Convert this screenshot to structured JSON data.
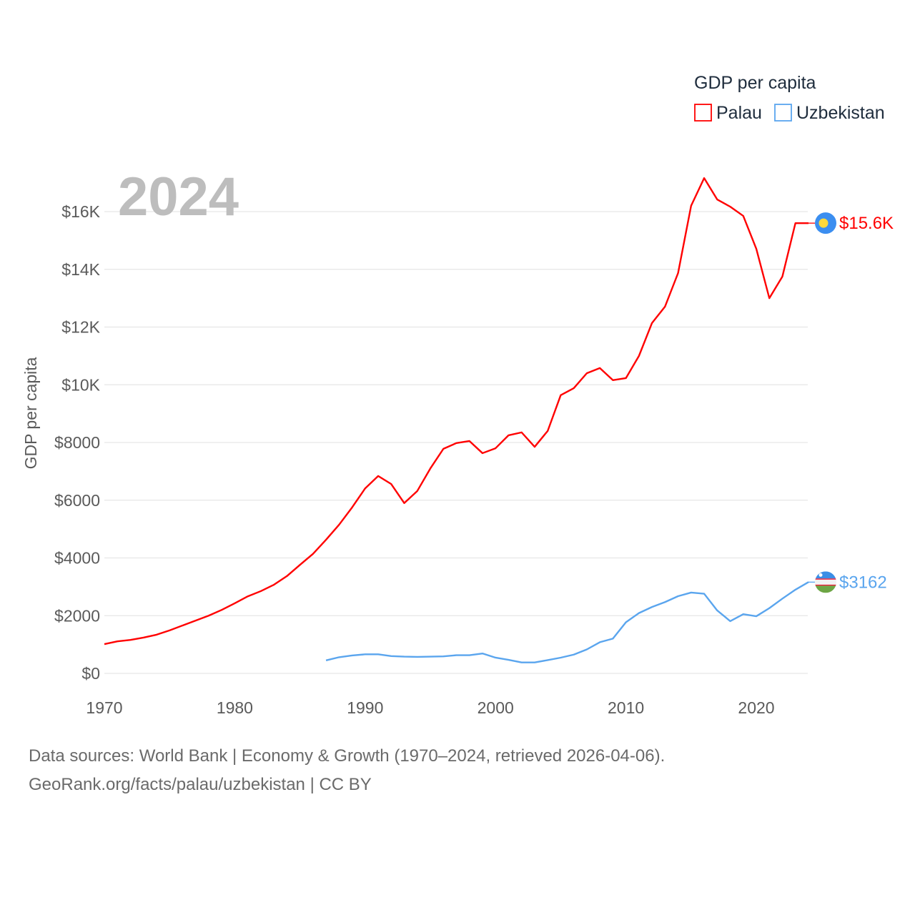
{
  "chart_data": {
    "type": "line",
    "title": "",
    "year_watermark": "2024",
    "ylabel": "GDP per capita",
    "xlabel": "",
    "xlim": [
      1970,
      2024
    ],
    "ylim": [
      0,
      17500
    ],
    "grid": true,
    "x_ticks": [
      1970,
      1980,
      1990,
      2000,
      2010,
      2020
    ],
    "x_tick_labels": [
      "1970",
      "1980",
      "1990",
      "2000",
      "2010",
      "2020"
    ],
    "y_ticks": [
      0,
      2000,
      4000,
      6000,
      8000,
      10000,
      12000,
      14000,
      16000
    ],
    "y_tick_labels": [
      "$0",
      "$2000",
      "$4000",
      "$6000",
      "$8000",
      "$10K",
      "$12K",
      "$14K",
      "$16K"
    ],
    "legend": {
      "title": "GDP per capita",
      "placement": "top-right"
    },
    "series": [
      {
        "name": "Palau",
        "color": "#ff0000",
        "end_label": "$15.6K",
        "flag": "palau-flag",
        "x": [
          1970,
          1971,
          1972,
          1973,
          1974,
          1975,
          1976,
          1977,
          1978,
          1979,
          1980,
          1981,
          1982,
          1983,
          1984,
          1985,
          1986,
          1987,
          1988,
          1989,
          1990,
          1991,
          1992,
          1993,
          1994,
          1995,
          1996,
          1997,
          1998,
          1999,
          2000,
          2001,
          2002,
          2003,
          2004,
          2005,
          2006,
          2007,
          2008,
          2009,
          2010,
          2011,
          2012,
          2013,
          2014,
          2015,
          2016,
          2017,
          2018,
          2019,
          2020,
          2021,
          2022,
          2023,
          2024
        ],
        "values": [
          1015,
          1110,
          1160,
          1240,
          1340,
          1490,
          1660,
          1830,
          2000,
          2200,
          2430,
          2670,
          2850,
          3070,
          3370,
          3760,
          4140,
          4630,
          5150,
          5750,
          6410,
          6840,
          6560,
          5900,
          6320,
          7100,
          7780,
          7980,
          8050,
          7630,
          7800,
          8250,
          8350,
          7850,
          8400,
          9640,
          9880,
          10400,
          10580,
          10160,
          10230,
          11000,
          12140,
          12710,
          13870,
          16200,
          17160,
          16420,
          16170,
          15850,
          14710,
          13000,
          13750,
          15600,
          15600
        ]
      },
      {
        "name": "Uzbekistan",
        "color": "#5aa5ee",
        "end_label": "$3162",
        "flag": "uzbekistan-flag",
        "x": [
          1987,
          1988,
          1989,
          1990,
          1991,
          1992,
          1993,
          1994,
          1995,
          1996,
          1997,
          1998,
          1999,
          2000,
          2001,
          2002,
          2003,
          2004,
          2005,
          2006,
          2007,
          2008,
          2009,
          2010,
          2011,
          2012,
          2013,
          2014,
          2015,
          2016,
          2017,
          2018,
          2019,
          2020,
          2021,
          2022,
          2023,
          2024
        ],
        "values": [
          450,
          560,
          620,
          660,
          660,
          600,
          580,
          570,
          580,
          590,
          630,
          630,
          690,
          545,
          470,
          380,
          380,
          460,
          545,
          650,
          830,
          1080,
          1205,
          1770,
          2090,
          2300,
          2470,
          2675,
          2800,
          2760,
          2180,
          1810,
          2050,
          1980,
          2260,
          2590,
          2900,
          3162
        ]
      }
    ]
  },
  "footer": {
    "line1": "Data sources: World Bank | Economy & Growth (1970–2024, retrieved 2026-04-06).",
    "line2": "GeoRank.org/facts/palau/uzbekistan | CC BY"
  }
}
